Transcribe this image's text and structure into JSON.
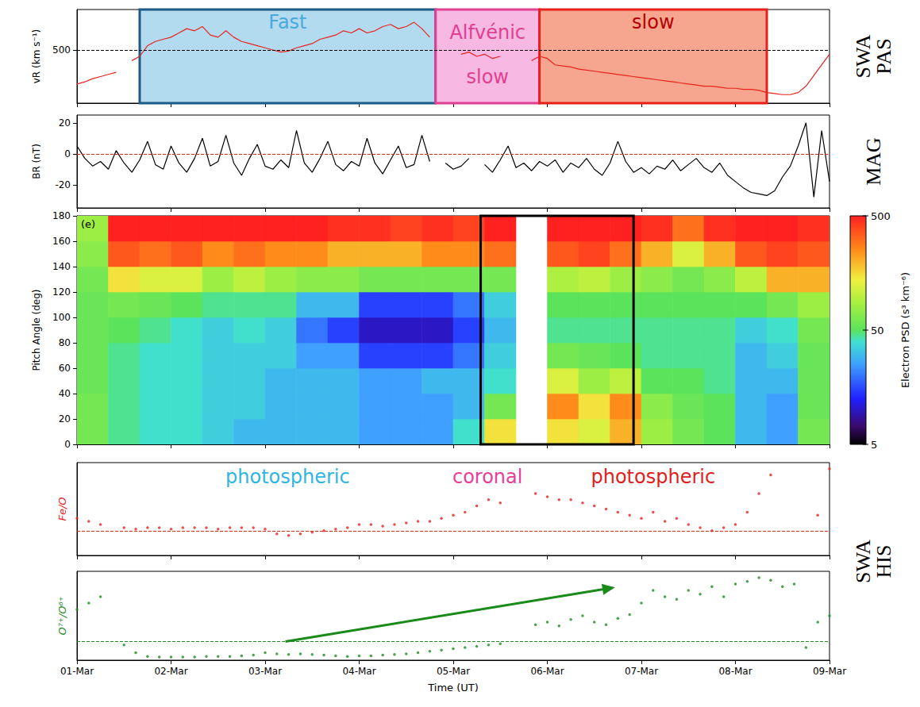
{
  "chart_data": [
    {
      "type": "line",
      "ylabel": "vR (km s⁻¹)",
      "color": "#e8231e",
      "tick_labels": "y",
      "xlim": [
        0,
        192
      ],
      "xticks": [
        {
          "value": 0,
          "label": "01-Mar"
        },
        {
          "value": 24,
          "label": "02-Mar"
        },
        {
          "value": 48,
          "label": "03-Mar"
        },
        {
          "value": 72,
          "label": "04-Mar"
        },
        {
          "value": 96,
          "label": "05-Mar"
        },
        {
          "value": 120,
          "label": "06-Mar"
        },
        {
          "value": 144,
          "label": "07-Mar"
        },
        {
          "value": 168,
          "label": "08-Mar"
        },
        {
          "value": 192,
          "label": "09-Mar"
        }
      ],
      "ylim": [
        250,
        690
      ],
      "yticks": [
        500
      ],
      "reference": 500,
      "x": [
        0,
        2,
        4,
        6,
        8,
        10,
        12,
        14,
        16,
        18,
        20,
        22,
        24,
        26,
        28,
        30,
        32,
        34,
        36,
        38,
        40,
        42,
        44,
        46,
        48,
        50,
        52,
        54,
        56,
        58,
        60,
        62,
        64,
        66,
        68,
        70,
        72,
        74,
        76,
        78,
        80,
        82,
        84,
        86,
        88,
        90,
        92,
        94,
        96,
        98,
        100,
        102,
        104,
        106,
        108,
        110,
        112,
        114,
        116,
        118,
        120,
        122,
        124,
        126,
        128,
        130,
        132,
        134,
        136,
        138,
        140,
        142,
        144,
        146,
        148,
        150,
        152,
        154,
        156,
        158,
        160,
        162,
        164,
        166,
        168,
        170,
        172,
        174,
        176,
        178,
        180,
        182,
        184,
        186,
        188,
        190,
        192
      ],
      "values": [
        340,
        350,
        365,
        375,
        385,
        395,
        null,
        450,
        470,
        520,
        540,
        550,
        560,
        580,
        600,
        590,
        610,
        570,
        560,
        590,
        560,
        540,
        530,
        520,
        510,
        500,
        490,
        495,
        510,
        520,
        530,
        550,
        560,
        570,
        590,
        580,
        600,
        580,
        590,
        610,
        620,
        600,
        610,
        630,
        600,
        560,
        null,
        null,
        null,
        480,
        490,
        470,
        480,
        460,
        470,
        null,
        null,
        null,
        450,
        470,
        460,
        430,
        425,
        420,
        410,
        405,
        400,
        395,
        390,
        385,
        380,
        375,
        370,
        365,
        360,
        355,
        350,
        345,
        340,
        335,
        330,
        330,
        325,
        320,
        320,
        315,
        315,
        310,
        300,
        295,
        290,
        290,
        300,
        330,
        380,
        430,
        480
      ],
      "regions": [
        {
          "label": "Fast",
          "start": 16,
          "end": 91.5,
          "color": "#b3dbf0"
        },
        {
          "label": "Alfvénic slow",
          "start": 91.5,
          "end": 118,
          "color": "#f8b8e4"
        },
        {
          "label": "slow",
          "start": 118,
          "end": 176,
          "color": "#f6a68e"
        }
      ]
    },
    {
      "type": "line",
      "ylabel": "BR (nT)",
      "color": "#000000",
      "tick_labels": "y",
      "xlim": [
        0,
        192
      ],
      "xticks": [
        {
          "value": 0,
          "label": "01-Mar"
        },
        {
          "value": 24,
          "label": "02-Mar"
        },
        {
          "value": 48,
          "label": "03-Mar"
        },
        {
          "value": 72,
          "label": "04-Mar"
        },
        {
          "value": 96,
          "label": "05-Mar"
        },
        {
          "value": 120,
          "label": "06-Mar"
        },
        {
          "value": 144,
          "label": "07-Mar"
        },
        {
          "value": 168,
          "label": "08-Mar"
        },
        {
          "value": 192,
          "label": "09-Mar"
        }
      ],
      "ylim": [
        -35,
        25
      ],
      "yticks": [
        -20,
        0,
        20
      ],
      "reference": 0,
      "x": [
        0,
        2,
        4,
        6,
        8,
        10,
        12,
        14,
        16,
        18,
        20,
        22,
        24,
        26,
        28,
        30,
        32,
        34,
        36,
        38,
        40,
        42,
        44,
        46,
        48,
        50,
        52,
        54,
        56,
        58,
        60,
        62,
        64,
        66,
        68,
        70,
        72,
        74,
        76,
        78,
        80,
        82,
        84,
        86,
        88,
        90,
        92,
        94,
        96,
        98,
        100,
        102,
        104,
        106,
        108,
        110,
        112,
        114,
        116,
        118,
        120,
        122,
        124,
        126,
        128,
        130,
        132,
        134,
        136,
        138,
        140,
        142,
        144,
        146,
        148,
        150,
        152,
        154,
        156,
        158,
        160,
        162,
        164,
        166,
        168,
        170,
        172,
        174,
        176,
        178,
        180,
        182,
        184,
        186,
        188,
        190,
        192
      ],
      "values": [
        5,
        -3,
        -8,
        -5,
        -10,
        2,
        -6,
        -12,
        -4,
        8,
        -7,
        -10,
        5,
        -6,
        -12,
        -3,
        10,
        -8,
        -5,
        12,
        -6,
        -14,
        -3,
        6,
        -8,
        -10,
        -4,
        -9,
        15,
        -6,
        -12,
        -3,
        8,
        -7,
        -11,
        -5,
        -8,
        10,
        -6,
        -13,
        -4,
        5,
        -9,
        -7,
        12,
        -5,
        null,
        -6,
        -10,
        -8,
        -3,
        null,
        -7,
        -12,
        -4,
        5,
        -9,
        -6,
        -11,
        -5,
        -8,
        -4,
        -12,
        -6,
        -9,
        -3,
        -10,
        -14,
        -6,
        8,
        -5,
        -12,
        -9,
        -13,
        -8,
        -10,
        -4,
        -11,
        -7,
        -3,
        -9,
        -12,
        -6,
        -14,
        -18,
        -22,
        -25,
        -26,
        -27,
        -24,
        -15,
        -8,
        5,
        20,
        -28,
        15,
        -18
      ]
    },
    {
      "type": "heatmap",
      "ylabel": "Pitch Angle (deg)",
      "panel_label": "(e)",
      "tick_labels": "y",
      "xlim": [
        0,
        192
      ],
      "xticks": [
        {
          "value": 0,
          "label": "01-Mar"
        },
        {
          "value": 24,
          "label": "02-Mar"
        },
        {
          "value": 48,
          "label": "03-Mar"
        },
        {
          "value": 72,
          "label": "04-Mar"
        },
        {
          "value": 96,
          "label": "05-Mar"
        },
        {
          "value": 120,
          "label": "06-Mar"
        },
        {
          "value": 144,
          "label": "07-Mar"
        },
        {
          "value": 168,
          "label": "08-Mar"
        },
        {
          "value": 192,
          "label": "09-Mar"
        }
      ],
      "ylim": [
        0,
        180
      ],
      "yticks": [
        0,
        20,
        40,
        60,
        80,
        100,
        120,
        140,
        160,
        180
      ],
      "time_edges": [
        0,
        8,
        16,
        24,
        32,
        40,
        48,
        56,
        64,
        72,
        80,
        88,
        96,
        104,
        112,
        120,
        128,
        136,
        144,
        152,
        160,
        168,
        176,
        184,
        192
      ],
      "pitch_edges": [
        0,
        20,
        40,
        60,
        80,
        100,
        120,
        140,
        160,
        180
      ],
      "psd": [
        [
          60,
          60,
          55,
          55,
          55,
          55,
          60,
          70,
          80
        ],
        [
          45,
          45,
          45,
          45,
          50,
          60,
          150,
          350,
          500
        ],
        [
          40,
          40,
          40,
          40,
          45,
          55,
          120,
          300,
          500
        ],
        [
          40,
          40,
          40,
          40,
          40,
          50,
          120,
          350,
          500
        ],
        [
          35,
          35,
          35,
          35,
          35,
          45,
          80,
          250,
          500
        ],
        [
          30,
          35,
          35,
          35,
          40,
          45,
          100,
          300,
          500
        ],
        [
          30,
          30,
          30,
          35,
          35,
          45,
          80,
          250,
          500
        ],
        [
          30,
          30,
          30,
          25,
          20,
          30,
          70,
          250,
          500
        ],
        [
          30,
          30,
          30,
          25,
          15,
          30,
          70,
          200,
          450
        ],
        [
          25,
          25,
          25,
          15,
          10,
          15,
          60,
          200,
          450
        ],
        [
          25,
          25,
          25,
          15,
          10,
          15,
          60,
          200,
          400
        ],
        [
          25,
          25,
          30,
          15,
          10,
          15,
          60,
          250,
          450
        ],
        [
          40,
          30,
          30,
          20,
          15,
          20,
          60,
          250,
          400
        ],
        [
          150,
          60,
          40,
          35,
          30,
          35,
          60,
          300,
          500
        ],
        [
          null,
          null,
          null,
          null,
          null,
          null,
          null,
          null,
          null
        ],
        [
          150,
          250,
          120,
          60,
          45,
          50,
          90,
          350,
          500
        ],
        [
          120,
          150,
          80,
          55,
          45,
          50,
          100,
          400,
          500
        ],
        [
          200,
          250,
          100,
          50,
          45,
          50,
          80,
          300,
          500
        ],
        [
          80,
          70,
          50,
          45,
          45,
          50,
          70,
          200,
          450
        ],
        [
          60,
          55,
          50,
          45,
          45,
          50,
          60,
          120,
          300
        ],
        [
          50,
          50,
          45,
          45,
          45,
          50,
          70,
          200,
          450
        ],
        [
          30,
          30,
          30,
          30,
          35,
          50,
          100,
          350,
          500
        ],
        [
          25,
          25,
          30,
          35,
          40,
          60,
          200,
          400,
          500
        ],
        [
          60,
          55,
          55,
          55,
          60,
          80,
          200,
          350,
          450
        ]
      ],
      "colorbar": {
        "label": "Electron PSD (s³ km⁻⁶)",
        "range": [
          5,
          500
        ],
        "ticks": [
          5,
          50,
          500
        ],
        "log": true
      },
      "box": {
        "start": 103,
        "end": 142
      }
    },
    {
      "type": "scatter",
      "ylabel": "Fe/O",
      "color": "#e8231e",
      "marker": "circle",
      "tick_labels": false,
      "xlim": [
        0,
        192
      ],
      "xticks": [
        {
          "value": 0,
          "label": "01-Mar"
        },
        {
          "value": 24,
          "label": "02-Mar"
        },
        {
          "value": 48,
          "label": "03-Mar"
        },
        {
          "value": 72,
          "label": "04-Mar"
        },
        {
          "value": 96,
          "label": "05-Mar"
        },
        {
          "value": 120,
          "label": "06-Mar"
        },
        {
          "value": 144,
          "label": "07-Mar"
        },
        {
          "value": 168,
          "label": "08-Mar"
        },
        {
          "value": 192,
          "label": "09-Mar"
        }
      ],
      "ylim": [
        0,
        0.3
      ],
      "reference": 0.08,
      "x": [
        0,
        3,
        6,
        9,
        12,
        15,
        18,
        21,
        24,
        27,
        30,
        33,
        36,
        39,
        42,
        45,
        48,
        51,
        54,
        57,
        60,
        63,
        66,
        69,
        72,
        75,
        78,
        81,
        84,
        87,
        90,
        93,
        96,
        99,
        102,
        105,
        108,
        111,
        114,
        117,
        120,
        123,
        126,
        129,
        132,
        135,
        138,
        141,
        144,
        147,
        150,
        153,
        156,
        159,
        162,
        165,
        168,
        171,
        174,
        177,
        180,
        183,
        186,
        189,
        192
      ],
      "values": [
        0.12,
        0.11,
        0.1,
        null,
        0.09,
        0.085,
        0.09,
        0.09,
        0.085,
        0.09,
        0.09,
        0.09,
        0.085,
        0.09,
        0.09,
        0.09,
        0.085,
        0.07,
        0.065,
        0.07,
        0.075,
        0.08,
        0.085,
        0.09,
        0.1,
        0.1,
        0.095,
        0.1,
        0.105,
        0.11,
        0.11,
        0.12,
        0.13,
        0.14,
        0.16,
        0.18,
        0.17,
        null,
        null,
        0.2,
        0.19,
        0.18,
        0.18,
        0.17,
        0.16,
        0.15,
        0.14,
        0.13,
        0.12,
        0.14,
        0.11,
        0.12,
        0.1,
        0.09,
        0.08,
        0.09,
        0.1,
        0.14,
        0.2,
        0.26,
        null,
        null,
        null,
        0.13,
        0.28
      ],
      "annotations": [
        {
          "text": "photospheric",
          "color": "#2fb4e4"
        },
        {
          "text": "coronal",
          "color": "#e8409a"
        },
        {
          "text": "photospheric",
          "color": "#e0201a"
        }
      ]
    },
    {
      "type": "scatter",
      "ylabel": "O⁷⁺/O⁶⁺",
      "xlabel": "Time (UT)",
      "color": "#1e8c1e",
      "marker": "circle",
      "tick_labels": "x",
      "xlim": [
        0,
        192
      ],
      "xticks": [
        {
          "value": 0,
          "label": "01-Mar"
        },
        {
          "value": 24,
          "label": "02-Mar"
        },
        {
          "value": 48,
          "label": "03-Mar"
        },
        {
          "value": 72,
          "label": "04-Mar"
        },
        {
          "value": 96,
          "label": "05-Mar"
        },
        {
          "value": 120,
          "label": "06-Mar"
        },
        {
          "value": 144,
          "label": "07-Mar"
        },
        {
          "value": 168,
          "label": "08-Mar"
        },
        {
          "value": 192,
          "label": "09-Mar"
        }
      ],
      "ylim": [
        0,
        0.7
      ],
      "reference": 0.15,
      "x": [
        0,
        3,
        6,
        9,
        12,
        15,
        18,
        21,
        24,
        27,
        30,
        33,
        36,
        39,
        42,
        45,
        48,
        51,
        54,
        57,
        60,
        63,
        66,
        69,
        72,
        75,
        78,
        81,
        84,
        87,
        90,
        93,
        96,
        99,
        102,
        105,
        108,
        111,
        114,
        117,
        120,
        123,
        126,
        129,
        132,
        135,
        138,
        141,
        144,
        147,
        150,
        153,
        156,
        159,
        162,
        165,
        168,
        171,
        174,
        177,
        180,
        183,
        186,
        189,
        192
      ],
      "values": [
        0.4,
        0.45,
        0.5,
        null,
        0.12,
        0.06,
        0.03,
        0.025,
        0.025,
        0.025,
        0.025,
        0.03,
        0.03,
        0.03,
        0.035,
        0.04,
        0.06,
        0.05,
        0.045,
        0.05,
        0.045,
        0.04,
        0.035,
        0.03,
        0.035,
        0.035,
        0.04,
        0.045,
        0.05,
        0.06,
        0.07,
        0.08,
        0.09,
        0.1,
        0.11,
        0.12,
        0.13,
        null,
        null,
        0.28,
        0.3,
        0.27,
        0.32,
        0.35,
        0.3,
        0.28,
        0.33,
        0.36,
        0.45,
        0.55,
        0.5,
        0.48,
        0.55,
        0.52,
        0.58,
        0.5,
        0.6,
        0.62,
        0.65,
        0.63,
        0.58,
        0.6,
        0.1,
        0.3,
        0.35
      ]
    }
  ],
  "instruments": [
    {
      "text": "SWA PAS",
      "panels": [
        0
      ]
    },
    {
      "text": "MAG",
      "panels": [
        1
      ]
    },
    {
      "text": "SWA HIS",
      "panels": [
        3,
        4
      ]
    }
  ]
}
